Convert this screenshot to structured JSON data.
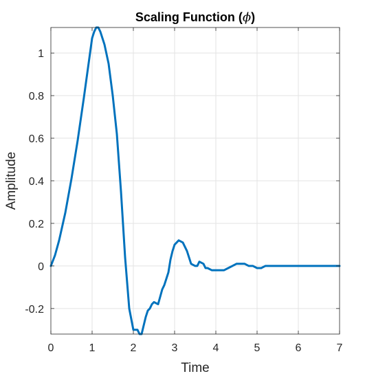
{
  "chart_data": {
    "type": "line",
    "title_main": "Scaling Function (",
    "title_symbol": "ϕ",
    "title_close": ")",
    "xlabel": "Time",
    "ylabel": "Amplitude",
    "xlim": [
      0,
      7
    ],
    "ylim": [
      -0.32,
      1.12
    ],
    "xticks": [
      0,
      1,
      2,
      3,
      4,
      5,
      6,
      7
    ],
    "xtick_labels": [
      "0",
      "1",
      "2",
      "3",
      "4",
      "5",
      "6",
      "7"
    ],
    "yticks": [
      -0.2,
      0,
      0.2,
      0.4,
      0.6,
      0.8,
      1
    ],
    "ytick_labels": [
      "-0.2",
      "0",
      "0.2",
      "0.4",
      "0.6",
      "0.8",
      "1"
    ],
    "grid": true,
    "line_color": "#0072BD",
    "grid_color": "#e3e3e3",
    "axis_color": "#262626",
    "series": [
      {
        "x": [
          0,
          0.1,
          0.2,
          0.35,
          0.5,
          0.65,
          0.8,
          0.9,
          1.0,
          1.05,
          1.1,
          1.15,
          1.2,
          1.25,
          1.3,
          1.4,
          1.5,
          1.6,
          1.7,
          1.8,
          1.9,
          2.0,
          2.1,
          2.15,
          2.2,
          2.3,
          2.35,
          2.4,
          2.45,
          2.5,
          2.6,
          2.7,
          2.75,
          2.8,
          2.85,
          2.9,
          2.95,
          3.0,
          3.05,
          3.1,
          3.2,
          3.3,
          3.4,
          3.5,
          3.55,
          3.6,
          3.7,
          3.75,
          3.8,
          3.9,
          4.0,
          4.1,
          4.2,
          4.3,
          4.4,
          4.5,
          4.55,
          4.6,
          4.7,
          4.8,
          4.9,
          5.0,
          5.1,
          5.2,
          5.4,
          5.6,
          6.0,
          6.5,
          7.0
        ],
        "y": [
          0.0,
          0.05,
          0.12,
          0.25,
          0.41,
          0.59,
          0.79,
          0.93,
          1.07,
          1.1,
          1.12,
          1.12,
          1.1,
          1.07,
          1.04,
          0.95,
          0.8,
          0.62,
          0.35,
          0.04,
          -0.2,
          -0.3,
          -0.3,
          -0.32,
          -0.32,
          -0.24,
          -0.21,
          -0.2,
          -0.18,
          -0.17,
          -0.18,
          -0.11,
          -0.09,
          -0.06,
          -0.03,
          0.03,
          0.07,
          0.1,
          0.11,
          0.12,
          0.11,
          0.07,
          0.01,
          0.0,
          0.0,
          0.02,
          0.01,
          -0.01,
          -0.01,
          -0.02,
          -0.02,
          -0.02,
          -0.02,
          -0.01,
          0.0,
          0.01,
          0.01,
          0.01,
          0.01,
          0.0,
          0.0,
          -0.01,
          -0.01,
          0.0,
          0.0,
          0.0,
          0.0,
          0.0,
          0.0
        ]
      }
    ]
  }
}
